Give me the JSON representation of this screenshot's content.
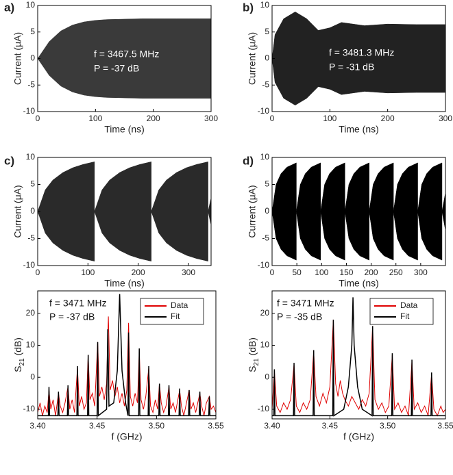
{
  "chart_data": [
    {
      "type": "envelope",
      "panel": "a)",
      "annotations": [
        "f = 3467.5 MHz",
        "P = -37 dB"
      ],
      "xlabel": "Time (ns)",
      "ylabel": "Current (μA)",
      "color": "#3a3a3a",
      "x": [
        0,
        20,
        40,
        60,
        80,
        100,
        120,
        140,
        160,
        180,
        200,
        220,
        240,
        260,
        280,
        300
      ],
      "upper": [
        0,
        3.2,
        5.2,
        6.3,
        6.9,
        7.2,
        7.35,
        7.4,
        7.45,
        7.5,
        7.5,
        7.5,
        7.5,
        7.5,
        7.5,
        7.5
      ],
      "lower": [
        0,
        -3.2,
        -5.2,
        -6.3,
        -6.9,
        -7.2,
        -7.35,
        -7.4,
        -7.45,
        -7.5,
        -7.5,
        -7.5,
        -7.5,
        -7.5,
        -7.5,
        -7.5
      ],
      "xlim": [
        0,
        300
      ],
      "xticks": [
        0,
        100,
        200,
        300
      ],
      "ylim": [
        -10,
        10
      ],
      "yticks": [
        -10,
        -5,
        0,
        5,
        10
      ]
    },
    {
      "type": "envelope",
      "panel": "b)",
      "annotations": [
        "f = 3481.3 MHz",
        "P = -31 dB"
      ],
      "xlabel": "Time (ns)",
      "ylabel": "Current (μA)",
      "color": "#222222",
      "x": [
        0,
        5,
        20,
        40,
        60,
        80,
        100,
        120,
        140,
        160,
        200,
        250,
        300
      ],
      "upper": [
        0,
        4.5,
        7.5,
        8.8,
        7.5,
        5.3,
        5.8,
        6.8,
        6.5,
        6.2,
        6.5,
        6.4,
        6.4
      ],
      "lower": [
        0,
        -4.5,
        -7.5,
        -8.8,
        -7.5,
        -5.3,
        -5.8,
        -6.8,
        -6.5,
        -6.2,
        -6.5,
        -6.4,
        -6.4
      ],
      "xlim": [
        0,
        300
      ],
      "xticks": [
        0,
        100,
        200,
        300
      ],
      "ylim": [
        -10,
        10
      ],
      "yticks": [
        -10,
        -5,
        0,
        5,
        10
      ]
    },
    {
      "type": "envelope",
      "panel": "c)",
      "annotations": [],
      "xlabel": "Time (ns)",
      "ylabel": "Current (μA)",
      "color": "#2a2a2a",
      "x": [
        0,
        15,
        30,
        50,
        70,
        90,
        113,
        113,
        128,
        143,
        163,
        183,
        203,
        226,
        226,
        241,
        256,
        276,
        296,
        316,
        339,
        339,
        345
      ],
      "upper": [
        0,
        4,
        5.8,
        7.2,
        8.1,
        8.7,
        9.2,
        0,
        4,
        5.8,
        7.2,
        8.1,
        8.7,
        9.2,
        0,
        4,
        5.8,
        7.2,
        8.1,
        8.7,
        9.2,
        0,
        2.5
      ],
      "lower": [
        0,
        -4,
        -5.8,
        -7.2,
        -8.1,
        -8.7,
        -9.2,
        0,
        -4,
        -5.8,
        -7.2,
        -8.1,
        -8.7,
        -9.2,
        0,
        -4,
        -5.8,
        -7.2,
        -8.1,
        -8.7,
        -9.2,
        0,
        -2.5
      ],
      "xlim": [
        0,
        345
      ],
      "xticks": [
        0,
        100,
        200,
        300
      ],
      "ylim": [
        -10,
        10
      ],
      "yticks": [
        -10,
        -5,
        0,
        5,
        10
      ]
    },
    {
      "type": "envelope",
      "panel": "d)",
      "annotations": [],
      "xlabel": "Time (ns)",
      "ylabel": "Current (μA)",
      "color": "#000000",
      "x": [
        0,
        8,
        18,
        30,
        49,
        49,
        57,
        67,
        79,
        98,
        98,
        106,
        116,
        128,
        147,
        147,
        155,
        165,
        177,
        196,
        196,
        204,
        214,
        226,
        245,
        245,
        253,
        263,
        275,
        294,
        294,
        302,
        312,
        324,
        343,
        343,
        350
      ],
      "upper": [
        0,
        5,
        7,
        8.2,
        9,
        0,
        5,
        7,
        8.2,
        9,
        0,
        5,
        7,
        8.2,
        9,
        0,
        5,
        7,
        8.2,
        9,
        0,
        5,
        7,
        8.2,
        9,
        0,
        5,
        7,
        8.2,
        9,
        0,
        5,
        7,
        8.2,
        9,
        0,
        3.5
      ],
      "lower": [
        0,
        -5,
        -7,
        -8.2,
        -9,
        0,
        -5,
        -7,
        -8.2,
        -9,
        0,
        -5,
        -7,
        -8.2,
        -9,
        0,
        -5,
        -7,
        -8.2,
        -9,
        0,
        -5,
        -7,
        -8.2,
        -9,
        0,
        -5,
        -7,
        -8.2,
        -9,
        0,
        -5,
        -7,
        -8.2,
        -9,
        0,
        -3.5
      ],
      "xlim": [
        0,
        350
      ],
      "xticks": [
        0,
        50,
        100,
        150,
        200,
        250,
        300
      ],
      "ylim": [
        -10,
        10
      ],
      "yticks": [
        -10,
        -5,
        0,
        5,
        10
      ]
    },
    {
      "type": "line",
      "annotations": [
        "f = 3471 MHz",
        "P = -37 dB"
      ],
      "xlabel": "f (GHz)",
      "ylabel": [
        "S",
        "21",
        " (dB)"
      ],
      "series": [
        {
          "name": "Data",
          "color": "#e00000",
          "x": [
            3.4,
            3.402,
            3.404,
            3.406,
            3.408,
            3.4095,
            3.411,
            3.413,
            3.415,
            3.4175,
            3.419,
            3.421,
            3.423,
            3.4255,
            3.427,
            3.429,
            3.431,
            3.4335,
            3.435,
            3.437,
            3.439,
            3.441,
            3.4425,
            3.444,
            3.446,
            3.448,
            3.4505,
            3.452,
            3.454,
            3.456,
            3.458,
            3.4595,
            3.461,
            3.463,
            3.465,
            3.467,
            3.469,
            3.471,
            3.473,
            3.475,
            3.4765,
            3.478,
            3.48,
            3.482,
            3.484,
            3.4855,
            3.487,
            3.489,
            3.491,
            3.4935,
            3.495,
            3.497,
            3.499,
            3.501,
            3.5025,
            3.504,
            3.506,
            3.508,
            3.5105,
            3.512,
            3.514,
            3.516,
            3.5195,
            3.521,
            3.523,
            3.5275,
            3.529,
            3.531,
            3.533,
            3.5365,
            3.538,
            3.54,
            3.542,
            3.5445,
            3.546,
            3.548,
            3.55
          ],
          "values": [
            -11,
            -8,
            -12,
            -9,
            -11,
            -4,
            -10,
            -7,
            -12,
            -5,
            -9,
            -11,
            -8,
            -3,
            -10,
            -7,
            -11,
            3,
            -9,
            -6,
            -10,
            -8,
            7,
            -7,
            -5,
            -9,
            11,
            -6,
            -3,
            -7,
            -2,
            19,
            -4,
            -1,
            -6,
            -3,
            -8,
            -5,
            -9,
            -4,
            17,
            -6,
            -9,
            -5,
            -8,
            8,
            -7,
            -10,
            -6,
            3,
            -9,
            -11,
            -7,
            -10,
            -2,
            -8,
            -11,
            -9,
            -3,
            -10,
            -8,
            -11,
            -4,
            -9,
            -12,
            -4,
            -10,
            -8,
            -11,
            -5,
            -9,
            -12,
            -8,
            -6,
            -10,
            -9,
            -11
          ]
        },
        {
          "name": "Fit",
          "color": "#000000",
          "x": [
            3.4,
            3.409,
            3.4095,
            3.41,
            3.417,
            3.4175,
            3.418,
            3.425,
            3.4255,
            3.426,
            3.433,
            3.4335,
            3.434,
            3.442,
            3.4425,
            3.443,
            3.45,
            3.4505,
            3.451,
            3.458,
            3.459,
            3.46,
            3.464,
            3.467,
            3.469,
            3.471,
            3.474,
            3.476,
            3.4765,
            3.477,
            3.485,
            3.4855,
            3.486,
            3.493,
            3.4935,
            3.494,
            3.502,
            3.5025,
            3.503,
            3.51,
            3.5105,
            3.511,
            3.519,
            3.5195,
            3.52,
            3.527,
            3.5275,
            3.528,
            3.536,
            3.5365,
            3.537,
            3.544,
            3.5445,
            3.545,
            3.55
          ],
          "values": [
            -12,
            -12,
            -3,
            -12,
            -12,
            -4.5,
            -12,
            -12,
            -2.5,
            -12,
            -12,
            3.5,
            -12,
            -12,
            7,
            -12,
            -12,
            11,
            -12,
            -10,
            15,
            -9,
            -8,
            2,
            26,
            2,
            -8,
            -12,
            14,
            -12,
            -12,
            9,
            -12,
            -12,
            3.5,
            -12,
            -12,
            -2,
            -12,
            -12,
            -2.5,
            -12,
            -12,
            -3.5,
            -12,
            -12,
            -4,
            -12,
            -12,
            -4.5,
            -12,
            -12,
            -6,
            -12,
            -12
          ]
        }
      ],
      "xlim": [
        3.4,
        3.55
      ],
      "xticks": [
        {
          "value": 3.4,
          "label": "3.40"
        },
        3.45,
        {
          "value": 3.5,
          "label": "3.50"
        },
        3.55
      ],
      "ylim": [
        -13,
        27
      ],
      "yticks": [
        -10,
        0,
        10,
        20
      ]
    },
    {
      "type": "line",
      "annotations": [
        "f = 3471 MHz",
        "P = -35 dB"
      ],
      "xlabel": "f (GHz)",
      "ylabel": [
        "S",
        "21",
        " (dB)"
      ],
      "series": [
        {
          "name": "Data",
          "color": "#e00000",
          "x": [
            3.4,
            3.402,
            3.404,
            3.407,
            3.41,
            3.413,
            3.416,
            3.419,
            3.421,
            3.424,
            3.427,
            3.43,
            3.433,
            3.436,
            3.438,
            3.441,
            3.444,
            3.447,
            3.45,
            3.453,
            3.455,
            3.457,
            3.459,
            3.461,
            3.463,
            3.466,
            3.469,
            3.472,
            3.475,
            3.478,
            3.481,
            3.484,
            3.487,
            3.489,
            3.492,
            3.495,
            3.498,
            3.501,
            3.504,
            3.506,
            3.509,
            3.512,
            3.515,
            3.518,
            3.521,
            3.523,
            3.526,
            3.529,
            3.532,
            3.535,
            3.538,
            3.54,
            3.543,
            3.546,
            3.548,
            3.55
          ],
          "values": [
            -10,
            2,
            -9,
            -11,
            -8,
            -10,
            -7,
            4,
            -9,
            -11,
            -8,
            -10,
            -7,
            8,
            -6,
            -9,
            -5,
            -8,
            -3,
            18,
            -2,
            -6,
            -1,
            -5,
            -7,
            -9,
            -6,
            -8,
            -10,
            -7,
            -9,
            -5,
            16,
            -7,
            -10,
            -8,
            -11,
            -9,
            7,
            -10,
            -8,
            -11,
            -9,
            -12,
            5,
            -10,
            -8,
            -11,
            -9,
            -12,
            1,
            -10,
            -12,
            -9,
            -11,
            -10
          ]
        },
        {
          "name": "Fit",
          "color": "#000000",
          "x": [
            3.4,
            3.4015,
            3.402,
            3.4025,
            3.4185,
            3.419,
            3.4195,
            3.4355,
            3.436,
            3.4365,
            3.4525,
            3.453,
            3.4535,
            3.462,
            3.466,
            3.469,
            3.47,
            3.471,
            3.474,
            3.478,
            3.4865,
            3.487,
            3.4875,
            3.5035,
            3.504,
            3.5045,
            3.5205,
            3.521,
            3.5215,
            3.5375,
            3.538,
            3.5385,
            3.55
          ],
          "values": [
            -12,
            -12,
            2.5,
            -12,
            -12,
            4.5,
            -12,
            -12,
            8.5,
            -12,
            -12,
            18,
            -12,
            -10,
            -3,
            10,
            25,
            10,
            -3,
            -10,
            -12,
            16,
            -12,
            -12,
            7.5,
            -12,
            -12,
            5.5,
            -12,
            -12,
            1.5,
            -12,
            -12
          ]
        }
      ],
      "xlim": [
        3.4,
        3.55
      ],
      "xticks": [
        {
          "value": 3.4,
          "label": "3.40"
        },
        3.45,
        {
          "value": 3.5,
          "label": "3.50"
        },
        3.55
      ],
      "ylim": [
        -13,
        27
      ],
      "yticks": [
        -10,
        0,
        10,
        20
      ]
    }
  ]
}
